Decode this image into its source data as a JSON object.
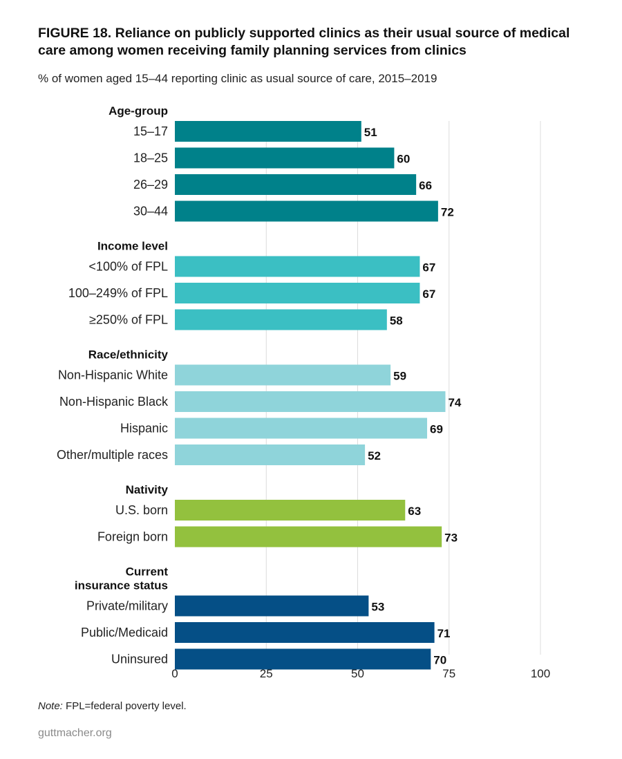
{
  "header": {
    "title": "FIGURE 18. Reliance on publicly supported clinics as their usual source of medical care among women receiving family planning services from clinics",
    "subtitle": "% of women aged 15–44 reporting clinic as usual source of care, 2015–2019"
  },
  "footer": {
    "note_label": "Note:",
    "note_text": " FPL=federal poverty level.",
    "source": "guttmacher.org"
  },
  "chart_data": {
    "type": "bar",
    "orientation": "horizontal",
    "title": "",
    "xlabel": "",
    "ylabel": "",
    "xlim": [
      0,
      100
    ],
    "xticks": [
      0,
      25,
      50,
      75,
      100
    ],
    "grid": true,
    "groups": [
      {
        "name": "Age-group",
        "color": "#00818a",
        "categories": [
          "15–17",
          "18–25",
          "26–29",
          "30–44"
        ],
        "values": [
          51,
          60,
          66,
          72
        ]
      },
      {
        "name": "Income level",
        "color": "#3bbfc3",
        "categories": [
          "<100% of FPL",
          "100–249% of FPL",
          "≥250% of FPL"
        ],
        "values": [
          67,
          67,
          58
        ]
      },
      {
        "name": "Race/ethnicity",
        "color": "#8fd4da",
        "categories": [
          "Non-Hispanic White",
          "Non-Hispanic Black",
          "Hispanic",
          "Other/multiple races"
        ],
        "values": [
          59,
          74,
          69,
          52
        ]
      },
      {
        "name": "Nativity",
        "color": "#93c13e",
        "categories": [
          "U.S. born",
          "Foreign born"
        ],
        "values": [
          63,
          73
        ]
      },
      {
        "name": "Current insurance status",
        "name_lines": [
          "Current",
          "insurance status"
        ],
        "color": "#054f86",
        "categories": [
          "Private/military",
          "Public/Medicaid",
          "Uninsured"
        ],
        "values": [
          53,
          71,
          70
        ]
      }
    ]
  }
}
